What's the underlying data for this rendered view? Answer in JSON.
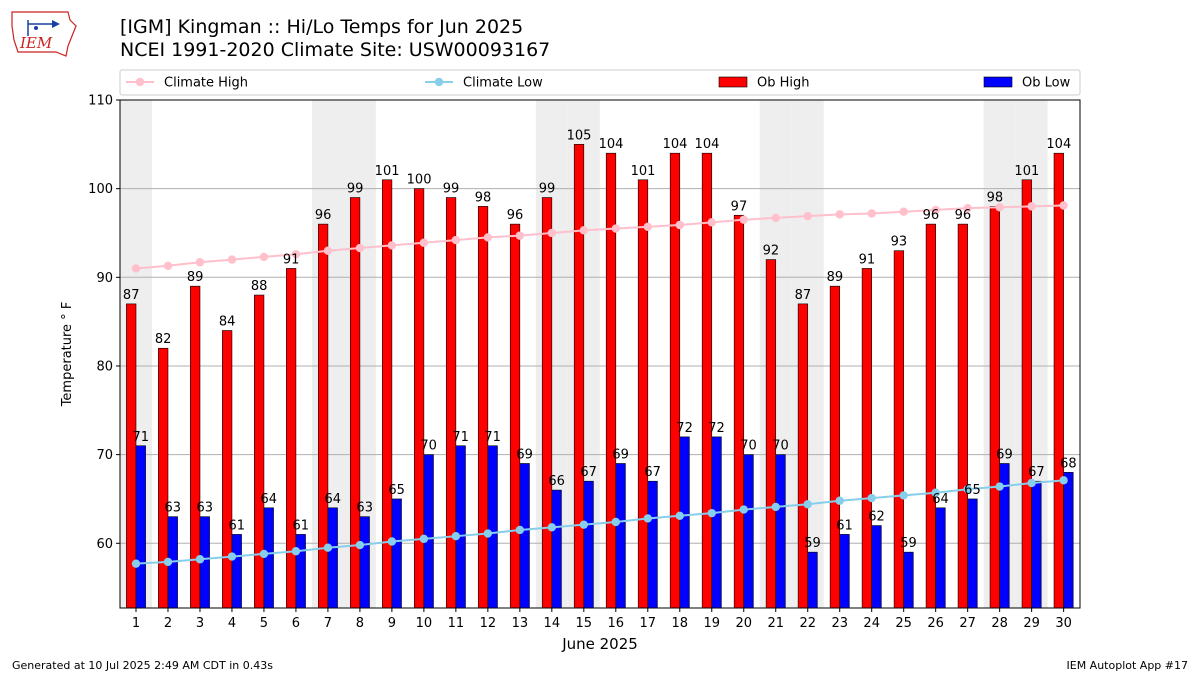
{
  "header": {
    "title_line1": "[IGM] Kingman :: Hi/Lo Temps for Jun 2025",
    "title_line2": "NCEI 1991-2020 Climate Site: USW00093167",
    "logo_text": "IEM"
  },
  "footer": {
    "generated": "Generated at 10 Jul 2025 2:49 AM CDT in 0.43s",
    "app": "IEM Autoplot App #17"
  },
  "colors": {
    "ob_high": "#ff0000",
    "ob_low": "#0000ff",
    "climate_high": "#ffc0cb",
    "climate_low": "#87ceeb",
    "weekend_shade": "#eeeeee",
    "grid": "#b0b0b0"
  },
  "chart_data": {
    "type": "bar",
    "xlabel": "June 2025",
    "ylabel": "Temperature ° F",
    "ylim": [
      52.7,
      110
    ],
    "yticks": [
      60,
      70,
      80,
      90,
      100,
      110
    ],
    "grid": "horizontal",
    "legend_position": "top",
    "categories": [
      "1",
      "2",
      "3",
      "4",
      "5",
      "6",
      "7",
      "8",
      "9",
      "10",
      "11",
      "12",
      "13",
      "14",
      "15",
      "16",
      "17",
      "18",
      "19",
      "20",
      "21",
      "22",
      "23",
      "24",
      "25",
      "26",
      "27",
      "28",
      "29",
      "30"
    ],
    "shaded_days": [
      1,
      7,
      8,
      14,
      15,
      21,
      22,
      28,
      29
    ],
    "series": [
      {
        "name": "Climate High",
        "kind": "line",
        "values": [
          91.0,
          91.3,
          91.7,
          92.0,
          92.3,
          92.6,
          93.0,
          93.3,
          93.6,
          93.9,
          94.2,
          94.5,
          94.7,
          95.0,
          95.3,
          95.5,
          95.7,
          95.9,
          96.2,
          96.5,
          96.7,
          96.9,
          97.1,
          97.2,
          97.4,
          97.6,
          97.8,
          97.9,
          98.0,
          98.1
        ]
      },
      {
        "name": "Climate Low",
        "kind": "line",
        "values": [
          57.7,
          57.9,
          58.2,
          58.5,
          58.8,
          59.1,
          59.5,
          59.8,
          60.2,
          60.5,
          60.8,
          61.1,
          61.5,
          61.8,
          62.1,
          62.4,
          62.8,
          63.1,
          63.4,
          63.8,
          64.1,
          64.4,
          64.8,
          65.1,
          65.4,
          65.7,
          66.1,
          66.4,
          66.8,
          67.1
        ]
      },
      {
        "name": "Ob High",
        "kind": "bar",
        "values": [
          87,
          82,
          89,
          84,
          88,
          91,
          96,
          99,
          101,
          100,
          99,
          98,
          96,
          99,
          105,
          104,
          101,
          104,
          104,
          97,
          92,
          87,
          89,
          91,
          93,
          96,
          96,
          98,
          101,
          104
        ]
      },
      {
        "name": "Ob Low",
        "kind": "bar",
        "values": [
          71,
          63,
          63,
          61,
          64,
          61,
          64,
          63,
          65,
          70,
          71,
          71,
          69,
          66,
          67,
          69,
          67,
          72,
          72,
          70,
          70,
          59,
          61,
          62,
          59,
          64,
          65,
          69,
          67,
          68
        ]
      }
    ]
  }
}
